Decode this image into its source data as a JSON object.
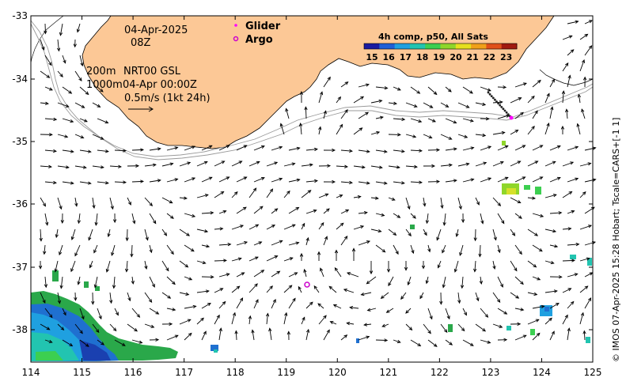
{
  "map": {
    "lon_ticks": [
      "114",
      "115",
      "116",
      "117",
      "118",
      "119",
      "120",
      "121",
      "122",
      "123",
      "124",
      "125"
    ],
    "lat_ticks": [
      "-33",
      "-34",
      "-35",
      "-36",
      "-37",
      "-38"
    ],
    "lon_range": [
      114,
      125
    ],
    "lat_range": [
      -38.55,
      -32.98
    ]
  },
  "annotations": {
    "date": "04-Apr-2025",
    "time": "08Z",
    "depth_200": "200m",
    "nrt_label": "NRT00 GSL",
    "depth_1000": "1000m",
    "ref_time": "04-Apr 00:00Z",
    "scale_label": "0.5m/s (1kt 24h)"
  },
  "legend": {
    "glider_label": "Glider",
    "argo_label": "Argo",
    "glider_color": "#ff00ff",
    "argo_color": "#cc00cc"
  },
  "colorbar": {
    "title": "4h comp, p50, All Sats",
    "ticks": [
      "15",
      "16",
      "17",
      "18",
      "19",
      "20",
      "21",
      "22",
      "23"
    ],
    "colors": [
      "#1a1aa0",
      "#1f5fd6",
      "#1fa0e0",
      "#22c4b0",
      "#3ccf50",
      "#8fd62a",
      "#e6e01e",
      "#f0a01a",
      "#e0501a",
      "#a01a10"
    ]
  },
  "credit": "© IMOS 07-Apr-2025 15:28 Hobart; Tscale=CARS+[-1 1]",
  "colors": {
    "land": "#fcc896",
    "arrow": "#000000",
    "contour": "#9a9a9a",
    "argo": "#cc00cc"
  }
}
